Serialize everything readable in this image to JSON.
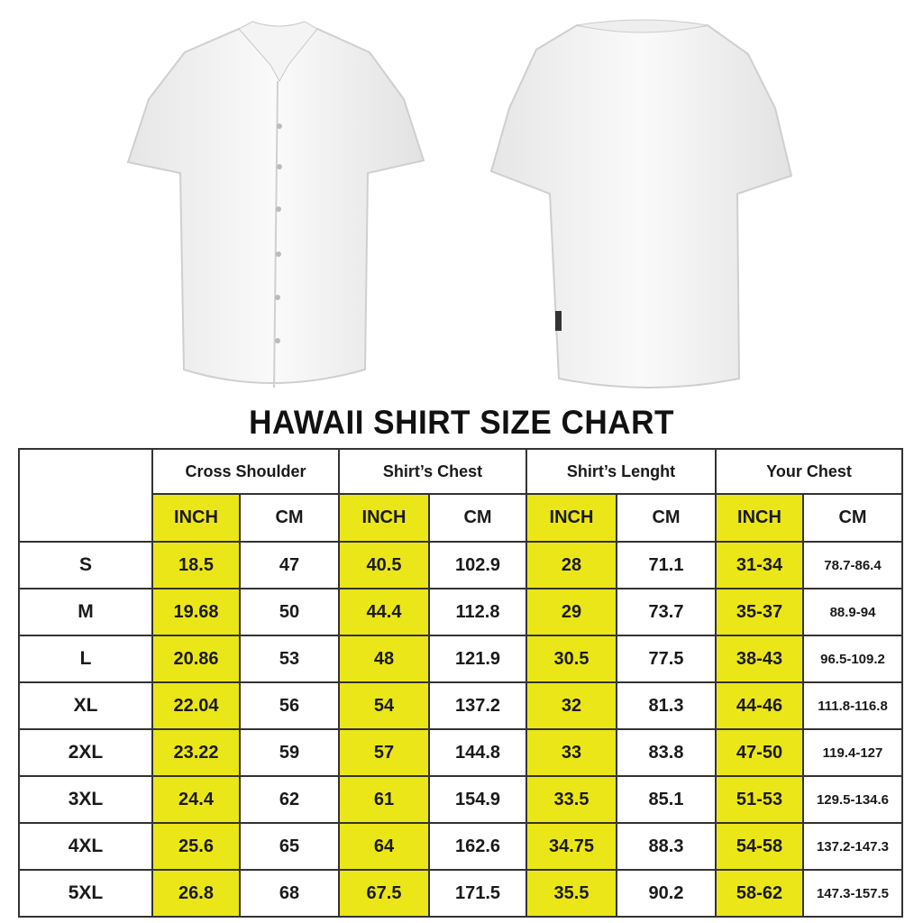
{
  "title": "HAWAII SHIRT SIZE CHART",
  "colors": {
    "highlight": "#ebe618",
    "border": "#333333"
  },
  "images": [
    "shirt-front",
    "shirt-back"
  ],
  "table": {
    "groups": [
      "Cross Shoulder",
      "Shirt’s Chest",
      "Shirt’s Lenght",
      "Your Chest"
    ],
    "units": [
      "INCH",
      "CM"
    ],
    "rows": [
      {
        "size": "S",
        "values": [
          "18.5",
          "47",
          "40.5",
          "102.9",
          "28",
          "71.1",
          "31-34",
          "78.7-86.4"
        ]
      },
      {
        "size": "M",
        "values": [
          "19.68",
          "50",
          "44.4",
          "112.8",
          "29",
          "73.7",
          "35-37",
          "88.9-94"
        ]
      },
      {
        "size": "L",
        "values": [
          "20.86",
          "53",
          "48",
          "121.9",
          "30.5",
          "77.5",
          "38-43",
          "96.5-109.2"
        ]
      },
      {
        "size": "XL",
        "values": [
          "22.04",
          "56",
          "54",
          "137.2",
          "32",
          "81.3",
          "44-46",
          "111.8-116.8"
        ]
      },
      {
        "size": "2XL",
        "values": [
          "23.22",
          "59",
          "57",
          "144.8",
          "33",
          "83.8",
          "47-50",
          "119.4-127"
        ]
      },
      {
        "size": "3XL",
        "values": [
          "24.4",
          "62",
          "61",
          "154.9",
          "33.5",
          "85.1",
          "51-53",
          "129.5-134.6"
        ]
      },
      {
        "size": "4XL",
        "values": [
          "25.6",
          "65",
          "64",
          "162.6",
          "34.75",
          "88.3",
          "54-58",
          "137.2-147.3"
        ]
      },
      {
        "size": "5XL",
        "values": [
          "26.8",
          "68",
          "67.5",
          "171.5",
          "35.5",
          "90.2",
          "58-62",
          "147.3-157.5"
        ]
      }
    ]
  }
}
